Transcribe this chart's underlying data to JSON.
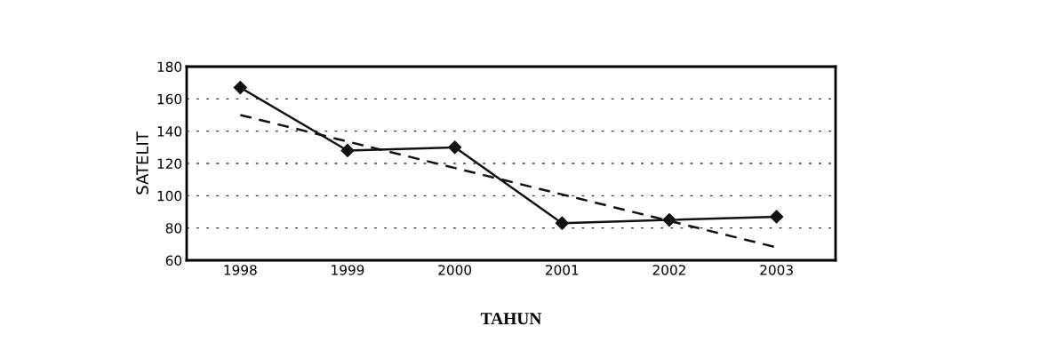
{
  "chart_data": {
    "type": "line",
    "ylabel": "SATELIT",
    "xlabel": "TAHUN",
    "x": [
      1998,
      1999,
      2000,
      2001,
      2002,
      2003
    ],
    "series": [
      {
        "color": "#111111",
        "values": [
          167,
          128,
          130,
          83,
          85,
          87
        ],
        "marker": "diamond",
        "line_style": "solid"
      },
      {
        "color": "#111111",
        "x": [
          1998,
          2003
        ],
        "values": [
          150,
          68
        ],
        "marker": "none",
        "line_style": "dashed"
      }
    ],
    "xlim": [
      1997.5,
      2003.55
    ],
    "xticks": [
      1998,
      1999,
      2000,
      2001,
      2002,
      2003
    ],
    "ylim": [
      60,
      180
    ],
    "yticks": [
      60,
      80,
      100,
      120,
      140,
      160,
      180
    ],
    "grid": "y"
  }
}
